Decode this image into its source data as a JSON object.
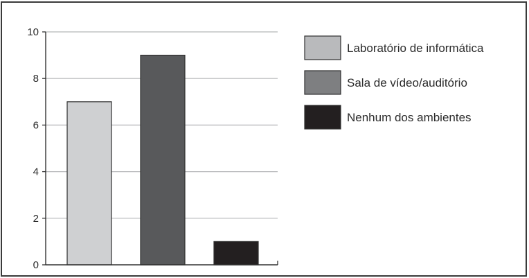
{
  "chart_data": {
    "type": "bar",
    "title": "",
    "xlabel": "",
    "ylabel": "",
    "ylim": [
      0,
      10
    ],
    "yticks": [
      0,
      2,
      4,
      6,
      8,
      10
    ],
    "grid": true,
    "legend_position": "right",
    "categories": [
      "Laboratório de informática",
      "Sala de vídeo/auditório",
      "Nenhum dos ambientes"
    ],
    "values": [
      7,
      9,
      1
    ],
    "colors": [
      "#cfd0d2",
      "#58595b",
      "#231f20"
    ],
    "legend": [
      {
        "label": "Laboratório de informática",
        "color": "#b9babc"
      },
      {
        "label": "Sala de vídeo/auditório",
        "color": "#7e7f81"
      },
      {
        "label": "Nenhum dos ambientes",
        "color": "#231f20"
      }
    ]
  }
}
